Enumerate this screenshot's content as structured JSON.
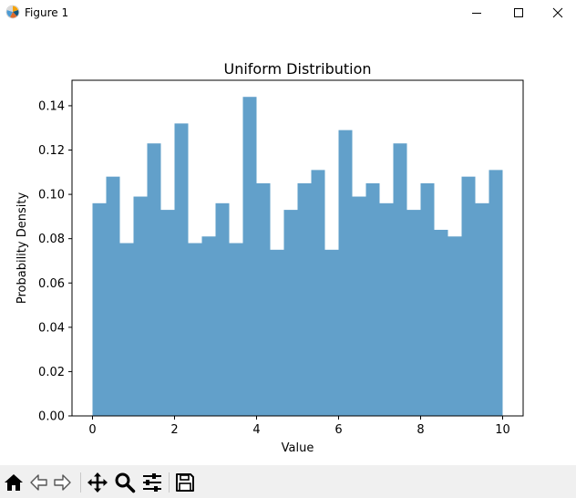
{
  "window": {
    "title": "Figure 1",
    "icons": {
      "app": "matplotlib-logo-icon",
      "minimize": "minimize-icon",
      "maximize": "maximize-icon",
      "close": "close-icon"
    }
  },
  "toolbar": {
    "tools": [
      "home-icon",
      "back-arrow-icon",
      "forward-arrow-icon",
      "pan-move-icon",
      "zoom-magnifier-icon",
      "configure-subplots-icon",
      "save-floppy-icon"
    ]
  },
  "chart_data": {
    "type": "bar",
    "title": "Uniform Distribution",
    "xlabel": "Value",
    "ylabel": "Probability Density",
    "xlim": [
      -0.5,
      10.5
    ],
    "ylim": [
      0,
      0.1515
    ],
    "xticks": [
      0,
      2,
      4,
      6,
      8,
      10
    ],
    "xtick_labels": [
      "0",
      "2",
      "4",
      "6",
      "8",
      "10"
    ],
    "yticks": [
      0.0,
      0.02,
      0.04,
      0.06,
      0.08,
      0.1,
      0.12,
      0.14
    ],
    "ytick_labels": [
      "0.00",
      "0.02",
      "0.04",
      "0.06",
      "0.08",
      "0.10",
      "0.12",
      "0.14"
    ],
    "bins": 30,
    "bin_range": [
      0,
      10
    ],
    "values": [
      0.096,
      0.108,
      0.078,
      0.099,
      0.123,
      0.093,
      0.132,
      0.078,
      0.081,
      0.096,
      0.078,
      0.144,
      0.105,
      0.075,
      0.093,
      0.105,
      0.111,
      0.075,
      0.129,
      0.099,
      0.105,
      0.096,
      0.123,
      0.093,
      0.105,
      0.084,
      0.081,
      0.108,
      0.096,
      0.111
    ],
    "color": "#1f77b4",
    "alpha": 0.7,
    "grid": false
  }
}
